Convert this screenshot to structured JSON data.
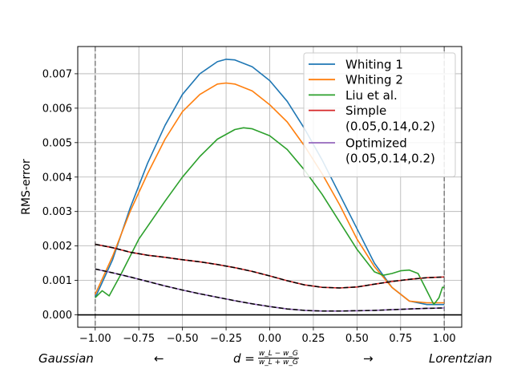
{
  "chart_data": {
    "type": "line",
    "title": "",
    "xlabel": "",
    "ylabel": "RMS-error",
    "xlim": [
      -1.1,
      1.1
    ],
    "ylim": [
      -0.00036,
      0.00779
    ],
    "xticks": [
      -1.0,
      -0.75,
      -0.5,
      -0.25,
      0.0,
      0.25,
      0.5,
      0.75,
      1.0
    ],
    "xtick_labels": [
      "−1.00",
      "−0.75",
      "−0.50",
      "−0.25",
      "0.00",
      "0.25",
      "0.50",
      "0.75",
      "1.00"
    ],
    "yticks": [
      0.0,
      0.001,
      0.002,
      0.003,
      0.004,
      0.005,
      0.006,
      0.007
    ],
    "ytick_labels": [
      "0.000",
      "0.001",
      "0.002",
      "0.003",
      "0.004",
      "0.005",
      "0.006",
      "0.007"
    ],
    "grid": true,
    "legend_position": "top-right",
    "vertical_dashed_lines_x": [
      -1.0,
      1.0
    ],
    "horizontal_line_y": 0.0,
    "series": [
      {
        "name": "Whiting 1",
        "color": "#1f77b4",
        "x": [
          -1.0,
          -0.9,
          -0.8,
          -0.7,
          -0.6,
          -0.5,
          -0.4,
          -0.3,
          -0.25,
          -0.2,
          -0.1,
          0.0,
          0.1,
          0.2,
          0.3,
          0.4,
          0.5,
          0.6,
          0.7,
          0.8,
          0.9,
          0.95,
          1.0
        ],
        "y": [
          0.0005,
          0.0016,
          0.0031,
          0.0044,
          0.0055,
          0.0064,
          0.007,
          0.00735,
          0.00742,
          0.0074,
          0.0072,
          0.0068,
          0.0062,
          0.0054,
          0.0045,
          0.0035,
          0.0025,
          0.0015,
          0.0008,
          0.0004,
          0.0003,
          0.0003,
          0.0003
        ]
      },
      {
        "name": "Whiting 2",
        "color": "#ff7f0e",
        "x": [
          -1.0,
          -0.9,
          -0.8,
          -0.7,
          -0.6,
          -0.5,
          -0.4,
          -0.3,
          -0.25,
          -0.2,
          -0.1,
          0.0,
          0.1,
          0.2,
          0.3,
          0.4,
          0.5,
          0.6,
          0.7,
          0.8,
          0.9,
          0.95,
          1.0
        ],
        "y": [
          0.0006,
          0.0017,
          0.003,
          0.0041,
          0.0051,
          0.0059,
          0.0064,
          0.0067,
          0.00673,
          0.0067,
          0.0065,
          0.0061,
          0.0056,
          0.0049,
          0.0041,
          0.0032,
          0.0022,
          0.0014,
          0.0008,
          0.0004,
          0.00035,
          0.00035,
          0.00035
        ]
      },
      {
        "name": "Liu et al.",
        "color": "#2ca02c",
        "x": [
          -1.0,
          -0.96,
          -0.92,
          -0.85,
          -0.75,
          -0.6,
          -0.5,
          -0.4,
          -0.3,
          -0.2,
          -0.15,
          -0.1,
          0.0,
          0.1,
          0.2,
          0.3,
          0.4,
          0.5,
          0.6,
          0.65,
          0.7,
          0.75,
          0.8,
          0.85,
          0.9,
          0.94,
          0.97,
          0.99,
          1.0
        ],
        "y": [
          0.0005,
          0.0007,
          0.00055,
          0.0012,
          0.0022,
          0.0033,
          0.004,
          0.0046,
          0.0051,
          0.00538,
          0.00543,
          0.0054,
          0.0052,
          0.0048,
          0.0042,
          0.0035,
          0.0027,
          0.0019,
          0.00125,
          0.00115,
          0.0012,
          0.00128,
          0.0013,
          0.0012,
          0.0007,
          0.0003,
          0.0005,
          0.0008,
          0.0008
        ]
      },
      {
        "name": "Simple\n(0.05,0.14,0.2)",
        "color": "#d62728",
        "x": [
          -1.0,
          -0.9,
          -0.8,
          -0.7,
          -0.6,
          -0.5,
          -0.4,
          -0.3,
          -0.2,
          -0.1,
          0.0,
          0.1,
          0.2,
          0.3,
          0.4,
          0.5,
          0.6,
          0.7,
          0.8,
          0.9,
          1.0
        ],
        "y": [
          0.00205,
          0.00195,
          0.00182,
          0.00173,
          0.00167,
          0.0016,
          0.00154,
          0.00146,
          0.00137,
          0.00126,
          0.00113,
          0.00099,
          0.00087,
          0.0008,
          0.00078,
          0.00081,
          0.00089,
          0.00097,
          0.00103,
          0.00108,
          0.0011
        ]
      },
      {
        "name": "Optimized\n(0.05,0.14,0.2)",
        "color": "#9467bd",
        "x": [
          -1.0,
          -0.9,
          -0.8,
          -0.7,
          -0.6,
          -0.5,
          -0.4,
          -0.3,
          -0.2,
          -0.1,
          0.0,
          0.1,
          0.2,
          0.3,
          0.4,
          0.5,
          0.6,
          0.7,
          0.8,
          0.9,
          1.0
        ],
        "y": [
          0.00133,
          0.00122,
          0.0011,
          0.00097,
          0.00084,
          0.00072,
          0.00061,
          0.00051,
          0.00041,
          0.00032,
          0.00024,
          0.00017,
          0.00013,
          0.00011,
          0.00011,
          0.00012,
          0.00013,
          0.00015,
          0.00017,
          0.00019,
          0.0002
        ]
      }
    ],
    "dashed_overlays_color": "#000000"
  },
  "captions": {
    "left": "Gaussian",
    "left_arrow": "←",
    "formula_prefix": "d = ",
    "formula_num": "w_L − w_G",
    "formula_den": "w_L + w_G",
    "right_arrow": "→",
    "right": "Lorentzian"
  }
}
